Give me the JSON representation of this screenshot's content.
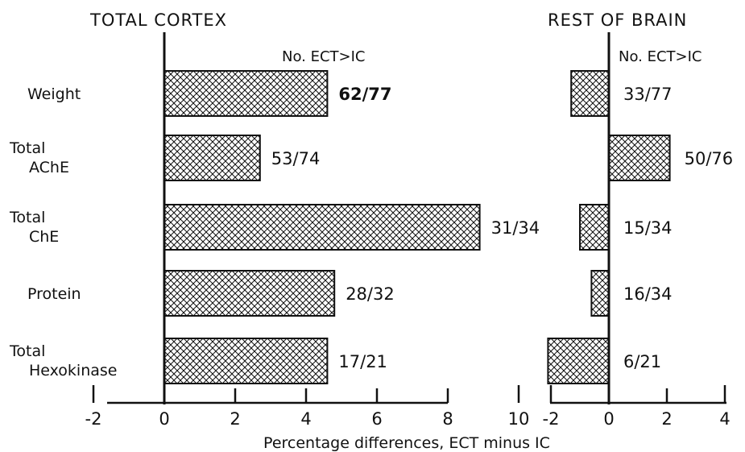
{
  "chart_data": [
    {
      "type": "bar",
      "orientation": "horizontal",
      "title": "TOTAL CORTEX",
      "header": "No. ECT>IC",
      "xlabel": "Percentage differences, ECT minus IC",
      "xlim": [
        -2,
        10
      ],
      "xticks": [
        -2,
        0,
        2,
        4,
        6,
        8,
        10
      ],
      "categories": [
        [
          "Weight"
        ],
        [
          "Total",
          "AChE"
        ],
        [
          "Total",
          "ChE"
        ],
        [
          "Protein"
        ],
        [
          "Total",
          "Hexokinase"
        ]
      ],
      "values": [
        4.6,
        2.7,
        8.9,
        4.8,
        4.6
      ],
      "bar_labels": [
        "62/77",
        "53/74",
        "31/34",
        "28/32",
        "17/21"
      ],
      "bar_label_bold": [
        true,
        false,
        false,
        false,
        false
      ]
    },
    {
      "type": "bar",
      "orientation": "horizontal",
      "title": "REST OF BRAIN",
      "header": "No. ECT>IC",
      "xlim": [
        -2,
        4
      ],
      "xticks": [
        -2,
        0,
        2,
        4
      ],
      "values": [
        -1.3,
        2.1,
        -1.0,
        -0.6,
        -2.1
      ],
      "bar_labels": [
        "33/77",
        "50/76",
        "15/34",
        "16/34",
        "6/21"
      ],
      "bar_label_bold": [
        false,
        false,
        false,
        false,
        false
      ]
    }
  ],
  "colors": {
    "ink": "#111111",
    "background": "#ffffff"
  }
}
